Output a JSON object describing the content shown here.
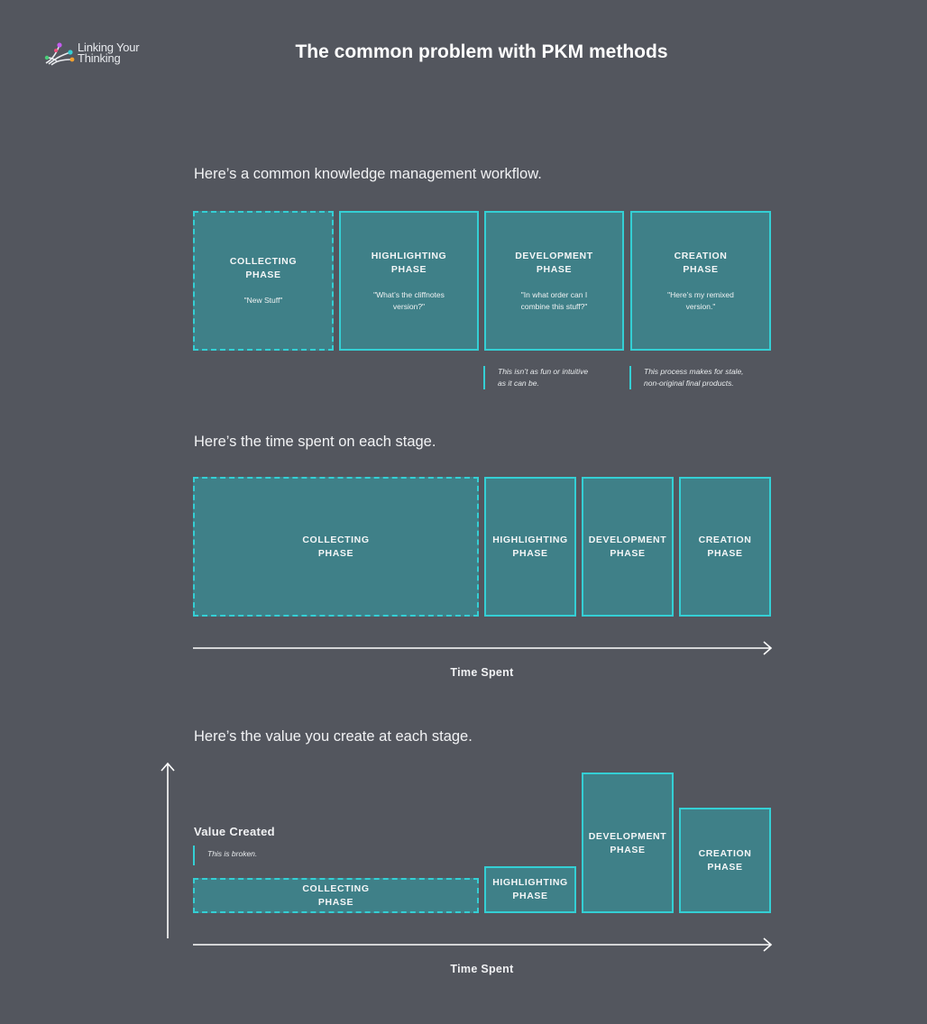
{
  "header": {
    "logo_line1": "Linking Your",
    "logo_line2": "Thinking",
    "title": "The common problem with PKM methods"
  },
  "workflow": {
    "heading": "Here’s a common knowledge management workflow.",
    "phases": [
      {
        "label": "COLLECTING\nPHASE",
        "quote": "\"New Stuff\""
      },
      {
        "label": "HIGHLIGHTING\nPHASE",
        "quote": "\"What’s the cliffnotes\nversion?\""
      },
      {
        "label": "DEVELOPMENT\nPHASE",
        "quote": "\"In what order can I\ncombine this stuff?\""
      },
      {
        "label": "CREATION\nPHASE",
        "quote": "\"Here’s my remixed\nversion.\""
      }
    ],
    "notes": [
      "This isn’t as fun or intuitive\nas it can be.",
      "This process makes for stale,\nnon-original final products."
    ]
  },
  "time": {
    "heading": "Here’s the time spent on each stage.",
    "phases": [
      "COLLECTING\nPHASE",
      "HIGHLIGHTING\nPHASE",
      "DEVELOPMENT\nPHASE",
      "CREATION\nPHASE"
    ],
    "axis_label": "Time Spent"
  },
  "value": {
    "heading": "Here’s the value you create at each stage.",
    "y_label": "Value Created",
    "note": "This is broken.",
    "phases": [
      "COLLECTING\nPHASE",
      "HIGHLIGHTING\nPHASE",
      "DEVELOPMENT\nPHASE",
      "CREATION\nPHASE"
    ],
    "axis_label": "Time Spent"
  },
  "colors": {
    "background": "#53565e",
    "box_fill": "#3f8088",
    "box_border": "#34cfd4"
  }
}
